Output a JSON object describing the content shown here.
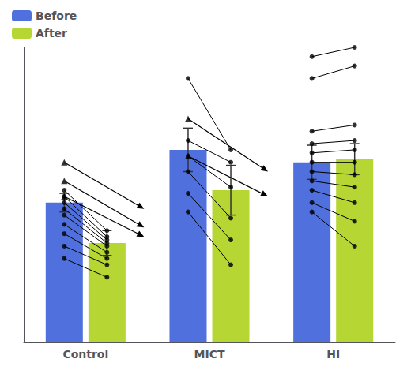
{
  "chart_data": {
    "type": "bar",
    "categories": [
      "Control",
      "MICT",
      "HI"
    ],
    "series": [
      {
        "name": "Before",
        "values": [
          4.5,
          6.2,
          5.8
        ],
        "errors": [
          0.3,
          0.7,
          0.55
        ]
      },
      {
        "name": "After",
        "values": [
          3.2,
          4.9,
          5.9
        ],
        "errors": [
          0.4,
          0.8,
          0.5
        ]
      }
    ],
    "paired_points": [
      {
        "category": "Control",
        "color": "#000000",
        "before": [
          4.9,
          4.7,
          4.5,
          4.3,
          4.1,
          3.8,
          3.5,
          3.1,
          2.7
        ],
        "after": [
          3.6,
          3.4,
          3.3,
          3.2,
          3.1,
          2.9,
          2.7,
          2.5,
          2.1
        ]
      },
      {
        "category": "MICT",
        "color": "#000000",
        "before": [
          8.5,
          6.5,
          6.0,
          5.5,
          4.8,
          4.2
        ],
        "after": [
          6.2,
          5.8,
          5.0,
          4.0,
          3.3,
          2.5
        ]
      },
      {
        "category": "HI",
        "color": "#000000",
        "before": [
          6.8,
          6.4,
          6.1,
          5.8,
          5.5,
          5.2,
          4.9,
          4.5,
          4.2,
          9.2,
          8.5
        ],
        "after": [
          7.0,
          6.5,
          6.2,
          5.8,
          5.4,
          5.0,
          4.5,
          3.9,
          3.1,
          9.5,
          8.9
        ]
      }
    ],
    "arrows": [
      {
        "category": "Control",
        "color": "#000000",
        "before": [
          5.8,
          5.2,
          4.7
        ],
        "after": [
          4.3,
          3.7,
          3.4
        ]
      },
      {
        "category": "MICT",
        "color": "#000000",
        "before": [
          7.2,
          6.0
        ],
        "after": [
          5.5,
          4.7
        ]
      }
    ],
    "ylim": [
      0,
      9.5
    ],
    "tick_labels": "x",
    "legend": "upper left",
    "grid": false
  }
}
